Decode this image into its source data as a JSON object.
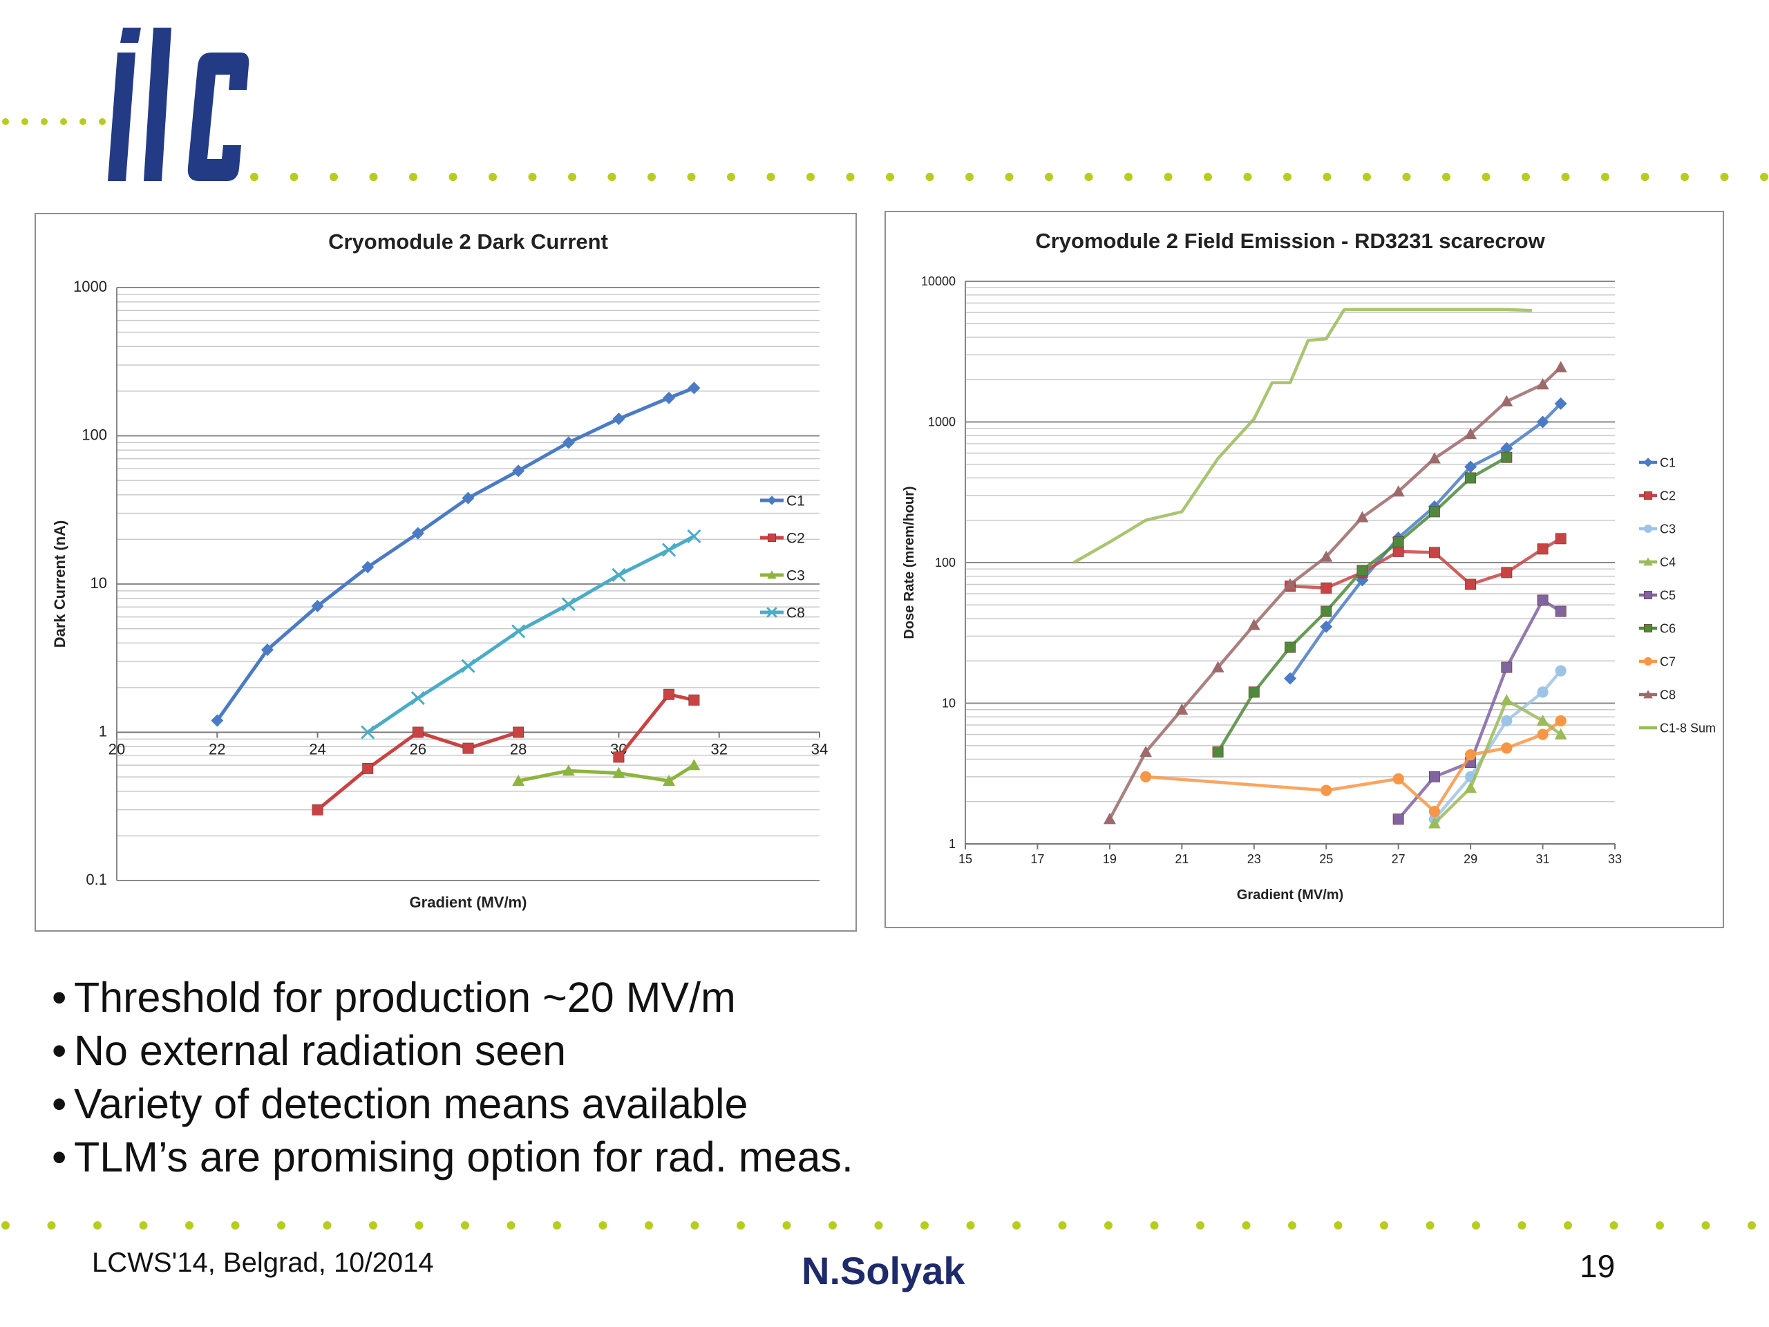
{
  "logo": {
    "text": "ilc",
    "color": "#233a85",
    "dot_color": "#b8cc1f"
  },
  "bullets": [
    "Threshold for production ~20 MV/m",
    "No external radiation seen",
    "Variety of detection means available",
    "TLM’s are promising option for rad. meas."
  ],
  "footer": {
    "left": "LCWS'14, Belgrad, 10/2014",
    "center": "N.Solyak",
    "page": "19"
  },
  "chart_data": [
    {
      "type": "line",
      "title": "Cryomodule 2 Dark Current",
      "xlabel": "Gradient (MV/m)",
      "ylabel": "Dark Current (nA)",
      "xlim": [
        20,
        34
      ],
      "ylim": [
        0.1,
        1000
      ],
      "yscale": "log",
      "xticks": [
        "20",
        "22",
        "24",
        "26",
        "28",
        "30",
        "32",
        "34"
      ],
      "yticks": [
        "0.1",
        "1",
        "10",
        "100",
        "1000"
      ],
      "grid": true,
      "legend": "right",
      "series": [
        {
          "name": "C1",
          "color": "#4a7bc4",
          "marker": "diamond",
          "x": [
            22,
            23,
            24,
            25,
            26,
            27,
            28,
            29,
            30,
            31,
            31.5
          ],
          "y": [
            1.2,
            3.6,
            7.1,
            13,
            22,
            38,
            58,
            90,
            130,
            180,
            210
          ]
        },
        {
          "name": "C2",
          "color": "#c84444",
          "marker": "square",
          "x": [
            24,
            25,
            26,
            27,
            28,
            null,
            30,
            31,
            31.5
          ],
          "y": [
            0.3,
            0.57,
            1.0,
            0.78,
            1.0,
            null,
            0.68,
            1.8,
            1.65
          ]
        },
        {
          "name": "C3",
          "color": "#8db43f",
          "marker": "triangle",
          "x": [
            28,
            29,
            30,
            31,
            31.5
          ],
          "y": [
            0.47,
            0.55,
            0.53,
            0.47,
            0.6
          ]
        },
        {
          "name": "C8",
          "color": "#4bacc6",
          "marker": "x",
          "x": [
            25,
            26,
            27,
            28,
            29,
            30,
            31,
            31.5
          ],
          "y": [
            1.0,
            1.7,
            2.8,
            4.8,
            7.3,
            11.5,
            17,
            21
          ]
        }
      ]
    },
    {
      "type": "line",
      "title": "Cryomodule 2 Field Emission - RD3231 scarecrow",
      "xlabel": "Gradient (MV/m)",
      "ylabel": "Dose Rate (mrem/hour)",
      "xlim": [
        15,
        33
      ],
      "ylim": [
        1,
        10000
      ],
      "yscale": "log",
      "xticks": [
        "15",
        "17",
        "19",
        "21",
        "23",
        "25",
        "27",
        "29",
        "31",
        "33"
      ],
      "yticks": [
        "1",
        "10",
        "100",
        "1000",
        "10000"
      ],
      "grid": true,
      "legend": "right",
      "series": [
        {
          "name": "C1",
          "color": "#4a7bc4",
          "marker": "diamond",
          "x": [
            24,
            25,
            26,
            27,
            28,
            29,
            30,
            31,
            31.5
          ],
          "y": [
            15,
            35,
            75,
            150,
            250,
            480,
            650,
            1000,
            1350
          ]
        },
        {
          "name": "C2",
          "color": "#c84444",
          "marker": "square",
          "x": [
            24,
            25,
            26,
            27,
            28,
            29,
            30,
            31,
            31.5
          ],
          "y": [
            68,
            66,
            85,
            120,
            118,
            70,
            85,
            125,
            148
          ]
        },
        {
          "name": "C3",
          "color": "#9dc3e6",
          "marker": "circle",
          "x": [
            28,
            29,
            30,
            31,
            31.5
          ],
          "y": [
            1.5,
            3,
            7.5,
            12,
            17
          ]
        },
        {
          "name": "C4",
          "color": "#9bbb59",
          "marker": "triangle",
          "x": [
            28,
            29,
            30,
            31,
            31.5
          ],
          "y": [
            1.4,
            2.5,
            10.5,
            7.5,
            6
          ]
        },
        {
          "name": "C5",
          "color": "#8064a2",
          "marker": "square",
          "x": [
            27,
            28,
            29,
            30,
            31,
            31.5
          ],
          "y": [
            1.5,
            3,
            3.8,
            18,
            54,
            45
          ]
        },
        {
          "name": "C6",
          "color": "#4f8a3c",
          "marker": "square",
          "x": [
            22,
            23,
            24,
            25,
            26,
            27,
            28,
            29,
            30
          ],
          "y": [
            4.5,
            12,
            25,
            45,
            88,
            140,
            230,
            400,
            560
          ]
        },
        {
          "name": "C7",
          "color": "#f79646",
          "marker": "circle",
          "x": [
            20,
            25,
            27,
            28,
            29,
            30,
            31,
            31.5
          ],
          "y": [
            3,
            2.4,
            2.9,
            1.7,
            4.3,
            4.8,
            6,
            7.5
          ]
        },
        {
          "name": "C8",
          "color": "#9c6a6a",
          "marker": "triangle",
          "x": [
            19,
            20,
            21,
            22,
            23,
            24,
            25,
            26,
            27,
            28,
            29,
            30,
            31,
            31.5
          ],
          "y": [
            1.5,
            4.5,
            9,
            18,
            36,
            70,
            110,
            210,
            320,
            550,
            820,
            1400,
            1850,
            2450
          ]
        },
        {
          "name": "C1-8 Sum",
          "color": "#9bbb59",
          "marker": "none",
          "x": [
            18,
            19,
            20,
            21,
            22,
            23,
            23.5,
            24,
            24.5,
            25,
            25.5,
            26,
            27,
            28,
            29,
            30,
            30.7
          ],
          "y": [
            100,
            140,
            200,
            230,
            550,
            1050,
            1900,
            1900,
            3800,
            3900,
            6300,
            6300,
            6300,
            6300,
            6300,
            6300,
            6200
          ]
        }
      ]
    }
  ]
}
